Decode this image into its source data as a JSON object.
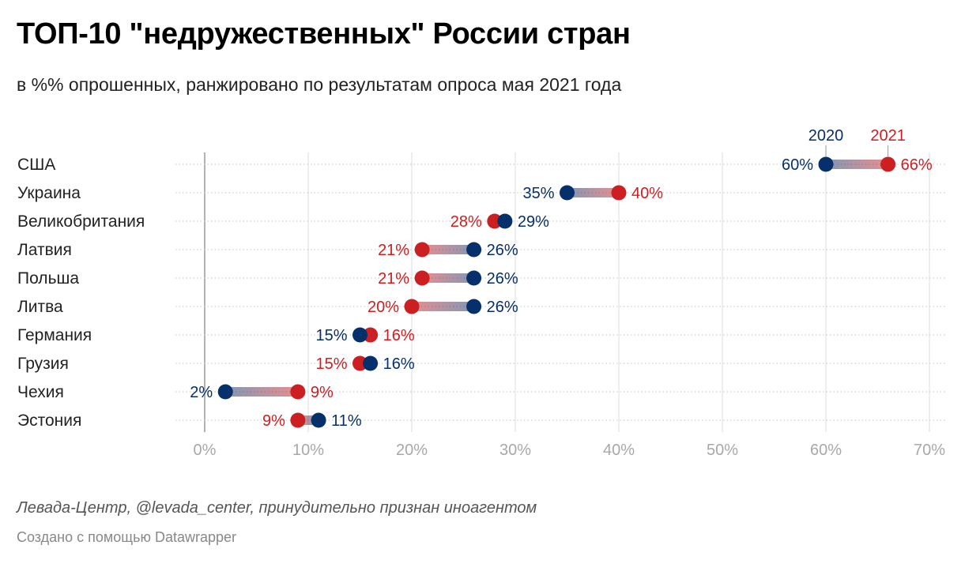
{
  "header": {
    "title": "ТОП-10 \"недружественных\" России стран",
    "subtitle": "в %% опрошенных, ранжировано по результатам опроса мая 2021 года"
  },
  "footer": {
    "source": "Левада-Центр, @levada_center, принудительно признан иноагентом",
    "credit": "Создано с помощью Datawrapper"
  },
  "colors": {
    "c2020": "#06306b",
    "c2021": "#cc1f21",
    "grid": "#dcdcdc",
    "axis": "#999999",
    "tick": "#a8a8a8"
  },
  "chart_data": {
    "type": "dot-range",
    "xlim": [
      0,
      70
    ],
    "xticks": [
      0,
      10,
      20,
      30,
      40,
      50,
      60,
      70
    ],
    "xtick_labels": [
      "0%",
      "10%",
      "20%",
      "30%",
      "40%",
      "50%",
      "60%",
      "70%"
    ],
    "legend": {
      "a": "2020",
      "b": "2021"
    },
    "categories": [
      "США",
      "Украина",
      "Великобритания",
      "Латвия",
      "Польша",
      "Литва",
      "Германия",
      "Грузия",
      "Чехия",
      "Эстония"
    ],
    "series": [
      {
        "name": "2020",
        "values": [
          60,
          35,
          29,
          26,
          26,
          26,
          15,
          16,
          2,
          11
        ],
        "labels": [
          "60%",
          "35%",
          "29%",
          "26%",
          "26%",
          "26%",
          "15%",
          "16%",
          "2%",
          "11%"
        ]
      },
      {
        "name": "2021",
        "values": [
          66,
          40,
          28,
          21,
          21,
          20,
          16,
          15,
          9,
          9
        ],
        "labels": [
          "66%",
          "40%",
          "28%",
          "21%",
          "21%",
          "20%",
          "16%",
          "15%",
          "9%",
          "9%"
        ]
      }
    ]
  }
}
